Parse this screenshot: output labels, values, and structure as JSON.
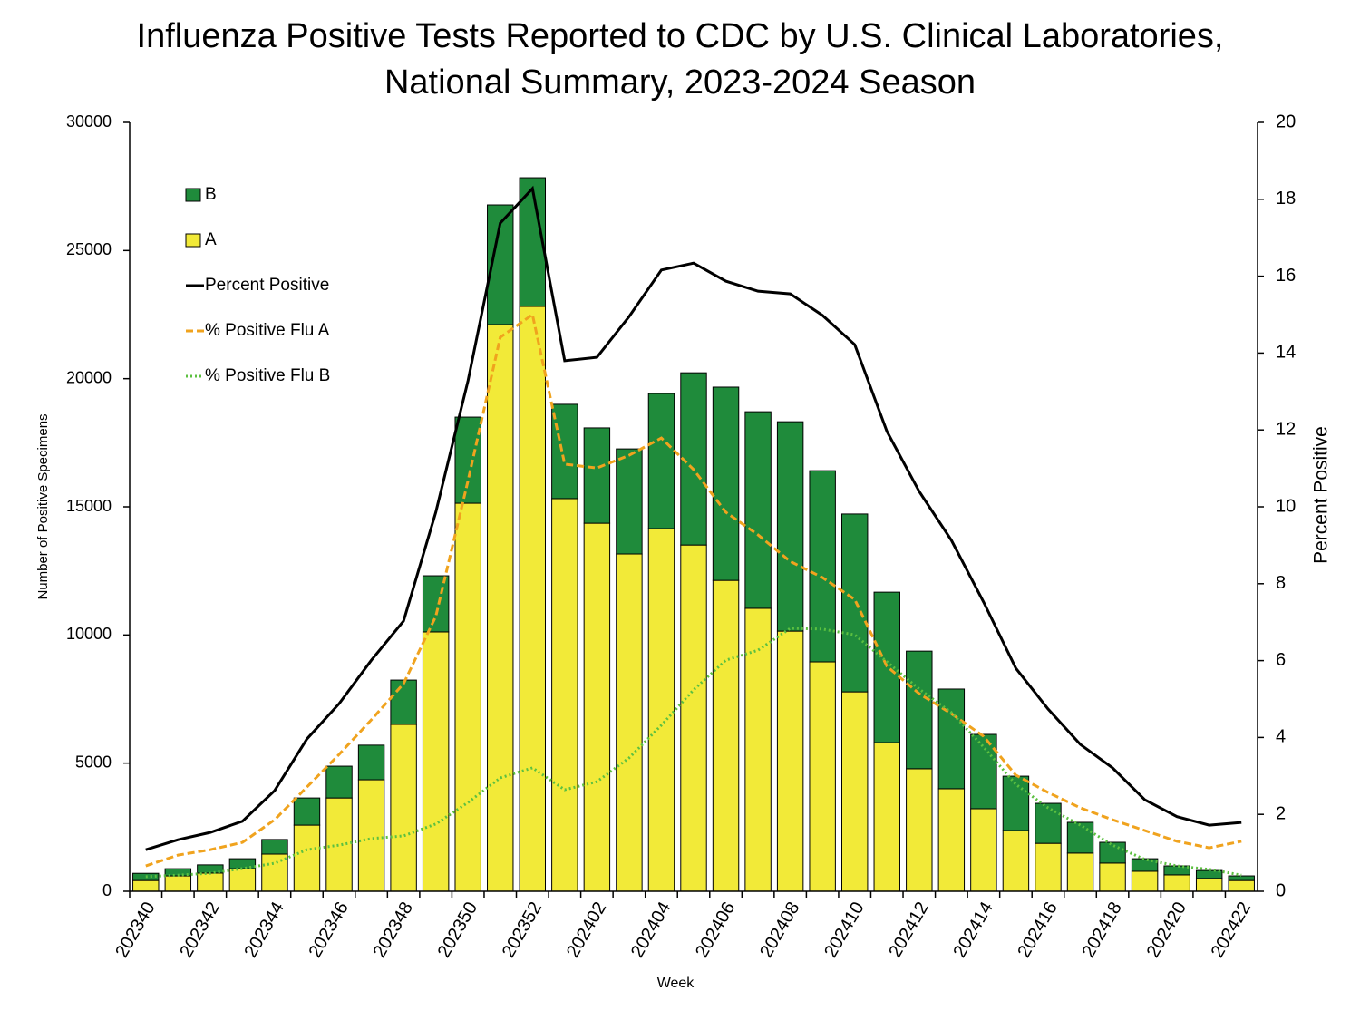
{
  "chart_data": {
    "type": "bar",
    "title": [
      "Influenza Positive Tests Reported to CDC by U.S. Clinical Laboratories,",
      "National Summary, 2023-2024 Season"
    ],
    "xlabel": "Week",
    "ylabel": "Number of Positive Specimens",
    "y2label": "Percent Positive",
    "stacked": true,
    "legend": "top-left",
    "categories": [
      "202340",
      null,
      "202342",
      null,
      "202344",
      null,
      "202346",
      null,
      "202348",
      null,
      "202350",
      null,
      "202352",
      null,
      "202402",
      null,
      "202404",
      null,
      "202406",
      null,
      "202408",
      null,
      "202410",
      null,
      "202412",
      null,
      "202414",
      null,
      "202416",
      null,
      "202418",
      null,
      "202420",
      null,
      "202422"
    ],
    "ylim": [
      0,
      30000
    ],
    "yticks": [
      0,
      5000,
      10000,
      15000,
      20000,
      25000,
      30000
    ],
    "y2lim": [
      0,
      20
    ],
    "y2ticks": [
      0,
      2,
      4,
      6,
      8,
      10,
      12,
      14,
      16,
      18,
      20
    ],
    "series": [
      {
        "name": "B",
        "type": "bar",
        "color": "#1f8b3b",
        "values": [
          280,
          280,
          320,
          390,
          570,
          1060,
          1240,
          1350,
          1730,
          2190,
          3360,
          4670,
          5020,
          3680,
          3720,
          4100,
          5270,
          6720,
          7540,
          7670,
          8170,
          7460,
          6940,
          5870,
          4590,
          3890,
          2900,
          2120,
          1560,
          1200,
          810,
          490,
          350,
          310,
          180
        ]
      },
      {
        "name": "A",
        "type": "bar",
        "color": "#f2ea38",
        "values": [
          420,
          600,
          710,
          880,
          1450,
          2580,
          3640,
          4350,
          6510,
          10120,
          15140,
          22110,
          22820,
          15320,
          14360,
          13160,
          14150,
          13510,
          12130,
          11040,
          10150,
          8950,
          7780,
          5800,
          4780,
          4000,
          3220,
          2370,
          1870,
          1490,
          1100,
          780,
          640,
          500,
          420
        ]
      },
      {
        "name": "Percent Positive",
        "type": "line",
        "axis": "y2",
        "color": "#000000",
        "dash": "solid",
        "values": [
          1.08,
          1.34,
          1.53,
          1.82,
          2.62,
          3.96,
          4.88,
          6.01,
          7.03,
          9.86,
          13.28,
          17.38,
          18.28,
          13.8,
          13.89,
          14.95,
          16.16,
          16.34,
          15.87,
          15.61,
          15.54,
          14.98,
          14.22,
          11.96,
          10.4,
          9.13,
          7.52,
          5.8,
          4.74,
          3.82,
          3.21,
          2.38,
          1.94,
          1.72,
          1.79
        ]
      },
      {
        "name": "% Positive Flu A",
        "type": "line",
        "axis": "y2",
        "color": "#f0a31e",
        "dash": "dashed",
        "values": [
          0.66,
          0.94,
          1.08,
          1.27,
          1.86,
          2.71,
          3.56,
          4.46,
          5.4,
          7.15,
          10.68,
          14.41,
          15.0,
          11.11,
          11.01,
          11.34,
          11.79,
          10.97,
          9.86,
          9.27,
          8.58,
          8.16,
          7.59,
          5.85,
          5.14,
          4.62,
          4.03,
          3.02,
          2.57,
          2.17,
          1.86,
          1.58,
          1.3,
          1.13,
          1.3
        ]
      },
      {
        "name": "% Positive Flu B",
        "type": "line",
        "axis": "y2",
        "color": "#5cc040",
        "dash": "dotted",
        "values": [
          0.38,
          0.42,
          0.47,
          0.59,
          0.73,
          1.08,
          1.2,
          1.37,
          1.44,
          1.75,
          2.31,
          2.95,
          3.21,
          2.64,
          2.85,
          3.47,
          4.32,
          5.24,
          6.01,
          6.27,
          6.84,
          6.82,
          6.67,
          5.97,
          5.26,
          4.65,
          3.75,
          2.78,
          2.17,
          1.72,
          1.2,
          0.83,
          0.66,
          0.57,
          0.42
        ]
      }
    ]
  }
}
